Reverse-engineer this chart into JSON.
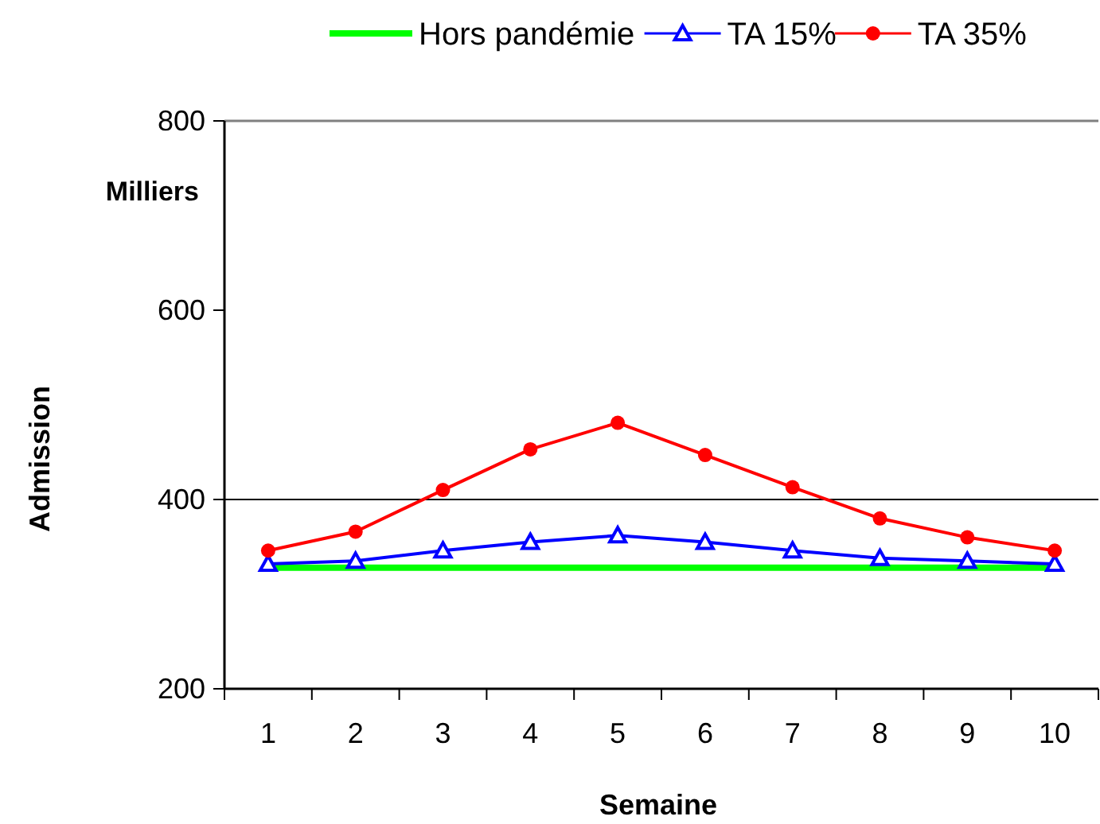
{
  "chart_data": {
    "type": "line",
    "xlabel": "Semaine",
    "ylabel": "Admission",
    "annotations": [
      "Milliers"
    ],
    "categories": [
      "1",
      "2",
      "3",
      "4",
      "5",
      "6",
      "7",
      "8",
      "9",
      "10"
    ],
    "series": [
      {
        "name": "Hors pandémie",
        "color": "#00ff00",
        "marker": "none",
        "values": [
          328,
          328,
          328,
          328,
          328,
          328,
          328,
          328,
          328,
          328
        ]
      },
      {
        "name": "TA 15%",
        "color": "#0000ff",
        "marker": "triangle",
        "values": [
          332,
          335,
          346,
          355,
          362,
          355,
          346,
          338,
          335,
          332
        ]
      },
      {
        "name": "TA 35%",
        "color": "#ff0000",
        "marker": "circle",
        "values": [
          346,
          366,
          410,
          453,
          481,
          447,
          413,
          380,
          360,
          346
        ]
      }
    ],
    "ylim": [
      200,
      800
    ],
    "yticks": [
      200,
      400,
      600,
      800
    ],
    "grid": false,
    "legend": "top",
    "ref_lines": [
      {
        "axis": "y",
        "value": 400
      }
    ]
  }
}
